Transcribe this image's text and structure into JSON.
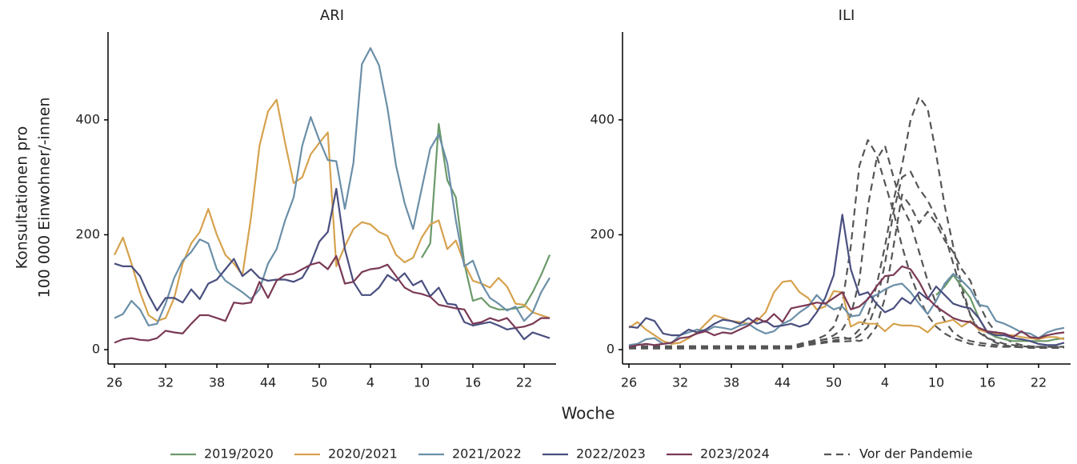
{
  "chart_data": [
    {
      "type": "line",
      "title": "ARI",
      "y_label": [
        "Konsultationen pro",
        "100 000 Einwohner/-innen"
      ],
      "x_label": "Woche",
      "categories": [
        "26",
        null,
        null,
        null,
        null,
        null,
        "32",
        null,
        null,
        null,
        null,
        null,
        "38",
        null,
        null,
        null,
        null,
        null,
        "44",
        null,
        null,
        null,
        null,
        null,
        "50",
        null,
        null,
        null,
        null,
        null,
        "4",
        null,
        null,
        null,
        null,
        null,
        "10",
        null,
        null,
        null,
        null,
        null,
        "16",
        null,
        null,
        null,
        null,
        null,
        "22",
        null,
        null,
        null
      ],
      "ylim": [
        -25,
        553
      ],
      "yticks": [
        0,
        200,
        400
      ],
      "series": [
        {
          "name": "2019/2020",
          "color": "#6b9a6a",
          "values": [
            null,
            null,
            null,
            null,
            null,
            null,
            null,
            null,
            null,
            null,
            null,
            null,
            null,
            null,
            null,
            null,
            null,
            null,
            null,
            null,
            null,
            null,
            null,
            null,
            null,
            null,
            null,
            null,
            null,
            null,
            null,
            null,
            null,
            null,
            null,
            null,
            160,
            185,
            393,
            295,
            265,
            150,
            85,
            90,
            75,
            70,
            70,
            72,
            75,
            100,
            130,
            165
          ]
        },
        {
          "name": "2020/2021",
          "color": "#d6a24e",
          "values": [
            165,
            195,
            150,
            100,
            60,
            50,
            55,
            90,
            150,
            185,
            205,
            245,
            200,
            165,
            150,
            130,
            230,
            355,
            415,
            435,
            360,
            290,
            300,
            340,
            360,
            378,
            145,
            180,
            210,
            222,
            218,
            205,
            198,
            165,
            152,
            160,
            195,
            218,
            225,
            175,
            190,
            150,
            120,
            115,
            108,
            125,
            110,
            80,
            78,
            65,
            60,
            55
          ]
        },
        {
          "name": "2021/2022",
          "color": "#6b8fa8",
          "values": [
            55,
            62,
            85,
            70,
            42,
            45,
            80,
            125,
            155,
            170,
            192,
            185,
            140,
            120,
            110,
            100,
            88,
            105,
            150,
            175,
            225,
            265,
            355,
            405,
            365,
            330,
            328,
            245,
            325,
            497,
            525,
            495,
            420,
            320,
            255,
            210,
            280,
            350,
            375,
            325,
            225,
            145,
            155,
            115,
            90,
            80,
            68,
            75,
            50,
            65,
            100,
            125
          ]
        },
        {
          "name": "2022/2023",
          "color": "#4a4f7f",
          "values": [
            150,
            145,
            145,
            128,
            95,
            68,
            90,
            90,
            82,
            105,
            88,
            115,
            122,
            140,
            158,
            128,
            140,
            125,
            120,
            122,
            122,
            118,
            125,
            150,
            188,
            205,
            280,
            175,
            118,
            95,
            95,
            108,
            130,
            120,
            133,
            112,
            120,
            93,
            108,
            80,
            78,
            48,
            42,
            45,
            48,
            42,
            35,
            38,
            18,
            30,
            25,
            20
          ]
        },
        {
          "name": "2023/2024",
          "color": "#7a3a56",
          "values": [
            12,
            18,
            20,
            17,
            16,
            20,
            33,
            30,
            28,
            45,
            60,
            60,
            55,
            50,
            82,
            80,
            82,
            118,
            90,
            120,
            130,
            132,
            140,
            148,
            152,
            140,
            163,
            115,
            118,
            135,
            140,
            142,
            148,
            128,
            108,
            100,
            97,
            92,
            78,
            75,
            72,
            70,
            45,
            48,
            55,
            50,
            55,
            38,
            40,
            45,
            55,
            55
          ]
        }
      ]
    },
    {
      "type": "line",
      "title": "ILI",
      "categories": [
        "26",
        null,
        null,
        null,
        null,
        null,
        "32",
        null,
        null,
        null,
        null,
        null,
        "38",
        null,
        null,
        null,
        null,
        null,
        "44",
        null,
        null,
        null,
        null,
        null,
        "50",
        null,
        null,
        null,
        null,
        null,
        "4",
        null,
        null,
        null,
        null,
        null,
        "10",
        null,
        null,
        null,
        null,
        null,
        "16",
        null,
        null,
        null,
        null,
        null,
        "22",
        null,
        null,
        null
      ],
      "ylim": [
        -25,
        553
      ],
      "yticks": [
        0,
        200,
        400
      ],
      "series": [
        {
          "name": "2019/2020",
          "color": "#6b9a6a",
          "values": [
            null,
            null,
            null,
            null,
            null,
            null,
            null,
            null,
            null,
            null,
            null,
            null,
            null,
            null,
            null,
            null,
            null,
            null,
            null,
            null,
            null,
            null,
            null,
            null,
            null,
            null,
            null,
            null,
            null,
            null,
            null,
            null,
            null,
            null,
            null,
            null,
            95,
            110,
            130,
            110,
            90,
            55,
            30,
            22,
            18,
            15,
            15,
            15,
            15,
            15,
            18,
            20
          ]
        },
        {
          "name": "2020/2021",
          "color": "#d6a24e",
          "values": [
            38,
            48,
            35,
            25,
            15,
            10,
            12,
            20,
            30,
            45,
            60,
            55,
            50,
            48,
            45,
            50,
            65,
            100,
            118,
            120,
            100,
            90,
            70,
            75,
            102,
            100,
            40,
            48,
            45,
            45,
            32,
            45,
            42,
            42,
            40,
            30,
            45,
            48,
            52,
            40,
            50,
            35,
            30,
            28,
            25,
            25,
            22,
            20,
            18,
            22,
            22,
            18
          ]
        },
        {
          "name": "2021/2022",
          "color": "#6b8fa8",
          "values": [
            8,
            10,
            18,
            20,
            10,
            12,
            25,
            30,
            35,
            32,
            40,
            38,
            35,
            42,
            45,
            35,
            28,
            32,
            45,
            52,
            65,
            75,
            95,
            80,
            70,
            75,
            58,
            60,
            90,
            95,
            105,
            112,
            115,
            100,
            80,
            62,
            85,
            115,
            132,
            120,
            105,
            78,
            75,
            50,
            45,
            38,
            30,
            28,
            20,
            30,
            35,
            38
          ]
        },
        {
          "name": "2022/2023",
          "color": "#4a4f7f",
          "values": [
            40,
            38,
            55,
            50,
            28,
            25,
            25,
            35,
            30,
            35,
            45,
            52,
            50,
            45,
            55,
            45,
            50,
            40,
            42,
            45,
            40,
            45,
            65,
            90,
            130,
            235,
            140,
            95,
            100,
            80,
            65,
            72,
            90,
            80,
            100,
            88,
            110,
            95,
            80,
            75,
            72,
            55,
            30,
            25,
            25,
            20,
            18,
            15,
            10,
            8,
            8,
            12
          ]
        },
        {
          "name": "2023/2024",
          "color": "#7a3a56",
          "values": [
            5,
            8,
            10,
            8,
            10,
            12,
            20,
            22,
            28,
            32,
            25,
            30,
            28,
            35,
            42,
            55,
            48,
            62,
            48,
            72,
            75,
            78,
            82,
            80,
            90,
            100,
            70,
            75,
            88,
            110,
            128,
            130,
            145,
            140,
            118,
            90,
            75,
            65,
            55,
            50,
            48,
            38,
            32,
            30,
            28,
            22,
            32,
            22,
            20,
            25,
            28,
            30
          ]
        }
      ],
      "reference": {
        "name": "Vor der Pandemie",
        "color": "#555555",
        "seasons": [
          [
            3,
            3,
            3,
            3,
            3,
            3,
            3,
            3,
            3,
            3,
            3,
            3,
            3,
            3,
            3,
            3,
            5,
            5,
            5,
            5,
            8,
            12,
            18,
            25,
            40,
            80,
            180,
            320,
            365,
            340,
            290,
            240,
            180,
            130,
            90,
            60,
            40,
            28,
            20,
            15,
            10,
            8,
            6,
            5,
            5,
            5,
            5,
            5,
            5,
            5,
            5,
            5
          ],
          [
            4,
            4,
            4,
            4,
            4,
            4,
            4,
            4,
            4,
            4,
            4,
            4,
            4,
            4,
            4,
            4,
            4,
            4,
            4,
            4,
            8,
            10,
            15,
            18,
            25,
            35,
            60,
            120,
            250,
            330,
            355,
            300,
            250,
            220,
            170,
            120,
            80,
            50,
            30,
            20,
            15,
            12,
            10,
            8,
            6,
            5,
            5,
            4,
            4,
            4,
            4,
            4
          ],
          [
            5,
            5,
            5,
            5,
            5,
            5,
            5,
            5,
            5,
            5,
            5,
            5,
            5,
            5,
            5,
            5,
            5,
            5,
            5,
            5,
            8,
            10,
            12,
            14,
            16,
            18,
            20,
            35,
            60,
            110,
            180,
            260,
            320,
            400,
            440,
            420,
            340,
            250,
            180,
            110,
            60,
            30,
            20,
            15,
            10,
            8,
            6,
            5,
            5,
            5,
            5,
            5
          ],
          [
            2,
            2,
            2,
            2,
            2,
            2,
            2,
            2,
            2,
            2,
            2,
            2,
            2,
            2,
            2,
            2,
            2,
            2,
            2,
            2,
            5,
            8,
            10,
            12,
            14,
            14,
            15,
            25,
            40,
            80,
            150,
            240,
            300,
            310,
            280,
            260,
            230,
            200,
            150,
            100,
            60,
            35,
            20,
            12,
            8,
            5,
            4,
            3,
            3,
            3,
            3,
            3
          ],
          [
            6,
            6,
            6,
            6,
            6,
            6,
            6,
            6,
            6,
            6,
            6,
            6,
            6,
            6,
            6,
            6,
            6,
            6,
            6,
            6,
            10,
            14,
            16,
            18,
            20,
            22,
            18,
            15,
            20,
            40,
            90,
            180,
            270,
            250,
            220,
            240,
            220,
            190,
            170,
            140,
            120,
            80,
            50,
            30,
            20,
            12,
            8,
            6,
            5,
            5,
            5,
            5
          ]
        ]
      }
    }
  ]
}
